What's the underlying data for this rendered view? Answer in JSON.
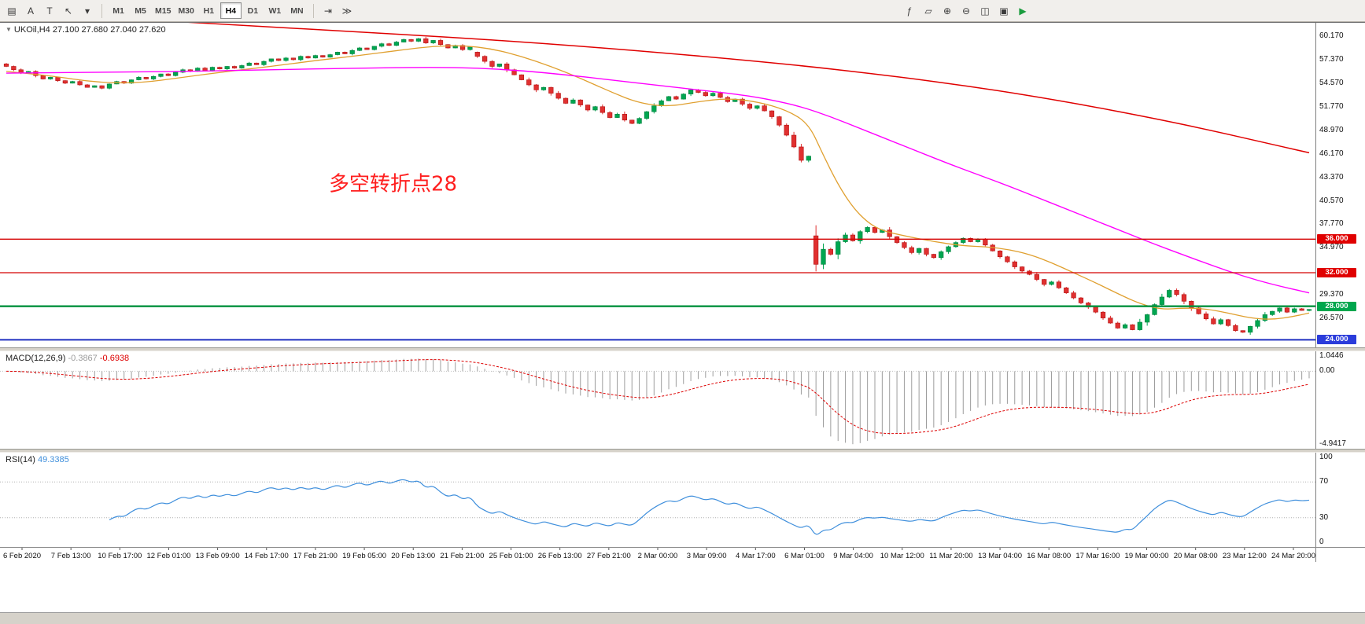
{
  "toolbar": {
    "left_icons": [
      {
        "name": "charts-toolbar-icon",
        "glyph": "▤"
      },
      {
        "name": "text-label-icon",
        "glyph": "A"
      },
      {
        "name": "shapes-tool-icon",
        "glyph": "T"
      },
      {
        "name": "cursor-tool-icon",
        "glyph": "↖"
      },
      {
        "name": "cursor-dropdown-icon",
        "glyph": "▾"
      }
    ],
    "timeframes": [
      {
        "label": "M1",
        "active": false
      },
      {
        "label": "M5",
        "active": false
      },
      {
        "label": "M15",
        "active": false
      },
      {
        "label": "M30",
        "active": false
      },
      {
        "label": "H1",
        "active": false
      },
      {
        "label": "H4",
        "active": true
      },
      {
        "label": "D1",
        "active": false
      },
      {
        "label": "W1",
        "active": false
      },
      {
        "label": "MN",
        "active": false
      }
    ],
    "mid_icons": [
      {
        "name": "chart-shift-icon",
        "glyph": "⇥"
      },
      {
        "name": "auto-scroll-icon",
        "glyph": "≫"
      }
    ],
    "right_icons": [
      {
        "name": "indicators-icon",
        "glyph": "ƒ"
      },
      {
        "name": "objects-list-icon",
        "glyph": "▱"
      },
      {
        "name": "zoom-in-icon",
        "glyph": "⊕"
      },
      {
        "name": "zoom-out-icon",
        "glyph": "⊖"
      },
      {
        "name": "tile-windows-icon",
        "glyph": "◫"
      },
      {
        "name": "cascade-windows-icon",
        "glyph": "▣"
      },
      {
        "name": "strategy-tester-icon",
        "glyph": "▶",
        "color": "#1a9c3e"
      }
    ]
  },
  "chart_window": {
    "collapse_arrow": "▼",
    "title": "UKOil,H4 27.100 27.680 27.040 27.620"
  },
  "macd_panel": {
    "name": "MACD(12,26,9)",
    "main_value": "-0.3867",
    "signal_value": "-0.6938"
  },
  "rsi_panel": {
    "name": "RSI(14)",
    "value": "49.3385"
  },
  "colors": {
    "up": "#00a651",
    "up_stroke": "#00803c",
    "down": "#e03030",
    "down_stroke": "#b31111",
    "ma_fast": "#e0a030",
    "ma_mid": "#ff00ff",
    "ma_slow": "#e00000",
    "macd_hist": "#9c9c9c",
    "macd_signal": "#dd0000",
    "rsi_line": "#3f8fdc",
    "annotation": "#ff1f1f"
  },
  "chart_data": {
    "type": "candlestick",
    "symbol": "UKOil",
    "timeframe": "H4",
    "ohlc_display": {
      "open": "27.100",
      "high": "27.680",
      "low": "27.040",
      "close": "27.620"
    },
    "y_range": [
      23.1,
      61.8
    ],
    "closes": [
      56.6,
      56.2,
      55.8,
      56.0,
      55.5,
      55.1,
      55.3,
      54.9,
      54.6,
      54.8,
      54.4,
      54.1,
      54.3,
      54.0,
      54.5,
      54.8,
      54.6,
      55.0,
      55.3,
      55.1,
      55.4,
      55.7,
      55.5,
      55.9,
      56.2,
      56.0,
      56.4,
      56.1,
      56.5,
      56.3,
      56.6,
      56.4,
      56.7,
      57.0,
      56.8,
      57.2,
      57.5,
      57.3,
      57.6,
      57.4,
      57.8,
      57.6,
      57.9,
      57.7,
      58.0,
      58.3,
      58.1,
      58.5,
      58.8,
      58.6,
      59.0,
      59.3,
      59.1,
      59.5,
      59.8,
      59.6,
      59.9,
      59.4,
      59.7,
      59.2,
      58.8,
      59.1,
      58.6,
      58.9,
      57.8,
      57.2,
      56.6,
      56.9,
      56.2,
      55.6,
      55.0,
      54.4,
      53.8,
      54.1,
      53.4,
      52.8,
      52.2,
      52.6,
      52.0,
      51.4,
      51.8,
      51.1,
      50.5,
      50.9,
      50.2,
      49.8,
      50.4,
      51.2,
      51.9,
      52.5,
      53.0,
      52.7,
      53.3,
      53.8,
      53.5,
      53.1,
      53.4,
      52.9,
      52.4,
      52.7,
      52.1,
      51.6,
      51.9,
      51.3,
      50.6,
      49.6,
      48.4,
      47.0,
      45.4,
      45.9,
      33.0,
      34.8,
      34.2,
      35.7,
      36.5,
      35.8,
      36.9,
      37.4,
      36.8,
      37.1,
      36.3,
      35.6,
      35.0,
      34.4,
      34.9,
      34.2,
      33.8,
      34.5,
      35.1,
      35.6,
      36.1,
      35.7,
      36.0,
      35.3,
      34.6,
      33.9,
      33.3,
      32.7,
      32.2,
      31.8,
      31.2,
      30.6,
      30.9,
      30.2,
      29.6,
      29.0,
      28.4,
      27.9,
      27.3,
      26.6,
      26.0,
      25.4,
      25.8,
      25.2,
      26.1,
      27.0,
      28.2,
      29.1,
      29.9,
      29.4,
      28.6,
      27.8,
      27.1,
      26.5,
      25.9,
      26.4,
      25.7,
      25.1,
      24.9,
      25.6,
      26.3,
      27.0,
      27.4,
      27.8,
      27.3,
      27.7,
      27.5,
      27.62
    ],
    "gap_opens": {
      "64": 58.3,
      "110": 36.4
    },
    "moving_averages": [
      {
        "name": "ma-fast-line",
        "color_key": "ma_fast",
        "width": 1.3,
        "points": [
          [
            0,
            56.0
          ],
          [
            6,
            55.5
          ],
          [
            12,
            54.7
          ],
          [
            18,
            54.6
          ],
          [
            24,
            55.3
          ],
          [
            30,
            56.0
          ],
          [
            36,
            56.6
          ],
          [
            42,
            57.3
          ],
          [
            48,
            57.9
          ],
          [
            54,
            58.6
          ],
          [
            58,
            59.0
          ],
          [
            62,
            59.1
          ],
          [
            66,
            58.7
          ],
          [
            70,
            57.8
          ],
          [
            74,
            56.6
          ],
          [
            78,
            55.2
          ],
          [
            82,
            53.6
          ],
          [
            86,
            52.2
          ],
          [
            90,
            51.8
          ],
          [
            94,
            52.4
          ],
          [
            98,
            52.8
          ],
          [
            102,
            52.4
          ],
          [
            106,
            51.4
          ],
          [
            109,
            49.8
          ],
          [
            111,
            46.0
          ],
          [
            113,
            42.5
          ],
          [
            115,
            39.8
          ],
          [
            117,
            38.0
          ],
          [
            119,
            37.0
          ],
          [
            122,
            36.4
          ],
          [
            126,
            35.7
          ],
          [
            130,
            35.2
          ],
          [
            133,
            35.1
          ],
          [
            136,
            34.8
          ],
          [
            139,
            34.2
          ],
          [
            142,
            33.2
          ],
          [
            145,
            32.0
          ],
          [
            148,
            30.8
          ],
          [
            151,
            29.5
          ],
          [
            154,
            28.3
          ],
          [
            157,
            27.6
          ],
          [
            160,
            27.8
          ],
          [
            163,
            27.7
          ],
          [
            166,
            27.2
          ],
          [
            169,
            26.6
          ],
          [
            172,
            26.4
          ],
          [
            175,
            26.8
          ],
          [
            177,
            27.2
          ]
        ]
      },
      {
        "name": "ma-mid-line",
        "color_key": "ma_mid",
        "width": 1.4,
        "points": [
          [
            0,
            55.8
          ],
          [
            12,
            55.9
          ],
          [
            24,
            56.0
          ],
          [
            36,
            56.2
          ],
          [
            48,
            56.4
          ],
          [
            58,
            56.5
          ],
          [
            64,
            56.4
          ],
          [
            70,
            56.1
          ],
          [
            76,
            55.6
          ],
          [
            82,
            55.0
          ],
          [
            88,
            54.4
          ],
          [
            94,
            53.8
          ],
          [
            100,
            53.2
          ],
          [
            104,
            52.6
          ],
          [
            108,
            51.8
          ],
          [
            112,
            50.6
          ],
          [
            116,
            49.2
          ],
          [
            120,
            47.8
          ],
          [
            124,
            46.4
          ],
          [
            128,
            45.0
          ],
          [
            132,
            43.7
          ],
          [
            136,
            42.4
          ],
          [
            140,
            41.0
          ],
          [
            144,
            39.6
          ],
          [
            148,
            38.2
          ],
          [
            152,
            36.8
          ],
          [
            156,
            35.4
          ],
          [
            160,
            34.1
          ],
          [
            164,
            32.8
          ],
          [
            168,
            31.6
          ],
          [
            172,
            30.6
          ],
          [
            177,
            29.6
          ]
        ]
      },
      {
        "name": "ma-slow-line",
        "color_key": "ma_slow",
        "width": 1.5,
        "points": [
          [
            24,
            61.9
          ],
          [
            36,
            61.3
          ],
          [
            48,
            60.7
          ],
          [
            60,
            60.1
          ],
          [
            72,
            59.4
          ],
          [
            84,
            58.6
          ],
          [
            96,
            57.7
          ],
          [
            108,
            56.7
          ],
          [
            120,
            55.5
          ],
          [
            132,
            54.1
          ],
          [
            144,
            52.4
          ],
          [
            156,
            50.4
          ],
          [
            164,
            48.9
          ],
          [
            170,
            47.7
          ],
          [
            177,
            46.3
          ]
        ]
      }
    ],
    "horizontal_lines": [
      {
        "price": 36.0,
        "color": "#d40000",
        "width": 1.3
      },
      {
        "price": 32.0,
        "color": "#d40000",
        "width": 1.3
      },
      {
        "price": 28.0,
        "color": "#00913e",
        "width": 2.4
      },
      {
        "price": 24.0,
        "color": "#1f2fc0",
        "width": 2.0
      }
    ],
    "annotation": {
      "text": "多空转折点28",
      "color": "#ff1f1f",
      "x_frac": 0.25,
      "price": 41.8,
      "font_size": 26
    },
    "price_ticks": [
      {
        "label": "60.170",
        "price": 60.17
      },
      {
        "label": "57.370",
        "price": 57.37
      },
      {
        "label": "54.570",
        "price": 54.57
      },
      {
        "label": "51.770",
        "price": 51.77
      },
      {
        "label": "48.970",
        "price": 48.97
      },
      {
        "label": "46.170",
        "price": 46.17
      },
      {
        "label": "43.370",
        "price": 43.37
      },
      {
        "label": "40.570",
        "price": 40.57
      },
      {
        "label": "37.770",
        "price": 37.77
      },
      {
        "label": "34.970",
        "price": 34.97
      },
      {
        "label": "29.370",
        "price": 29.37
      },
      {
        "label": "26.570",
        "price": 26.57
      }
    ],
    "price_line_labels": [
      {
        "label": "36.000",
        "price": 36.0,
        "color": "#e00000"
      },
      {
        "label": "32.000",
        "price": 32.0,
        "color": "#e00000"
      },
      {
        "label": "28.000",
        "price": 28.0,
        "color": "#00a64d"
      },
      {
        "label": "24.000",
        "price": 24.0,
        "color": "#2b3cdb"
      }
    ],
    "macd": {
      "params": [
        12,
        26,
        9
      ],
      "y_range": [
        -5.25,
        1.35
      ],
      "axis": [
        {
          "label": "1.0446",
          "value": 1.0446
        },
        {
          "label": "0.00",
          "value": 0
        },
        {
          "label": "-4.9417",
          "value": -4.9417
        }
      ]
    },
    "rsi": {
      "period": 14,
      "levels": [
        70,
        30
      ],
      "axis": [
        {
          "label": "100",
          "value": 100
        },
        {
          "label": "70",
          "value": 70
        },
        {
          "label": "30",
          "value": 30
        },
        {
          "label": "0",
          "value": 0
        }
      ]
    },
    "time_labels": [
      "6 Feb 2020",
      "7 Feb 13:00",
      "10 Feb 17:00",
      "12 Feb 01:00",
      "13 Feb 09:00",
      "14 Feb 17:00",
      "17 Feb 21:00",
      "19 Feb 05:00",
      "20 Feb 13:00",
      "21 Feb 21:00",
      "25 Feb 01:00",
      "26 Feb 13:00",
      "27 Feb 21:00",
      "2 Mar 00:00",
      "3 Mar 09:00",
      "4 Mar 17:00",
      "6 Mar 01:00",
      "9 Mar 04:00",
      "10 Mar 12:00",
      "11 Mar 20:00",
      "13 Mar 04:00",
      "16 Mar 08:00",
      "17 Mar 16:00",
      "19 Mar 00:00",
      "20 Mar 08:00",
      "23 Mar 12:00",
      "24 Mar 20:00"
    ]
  }
}
